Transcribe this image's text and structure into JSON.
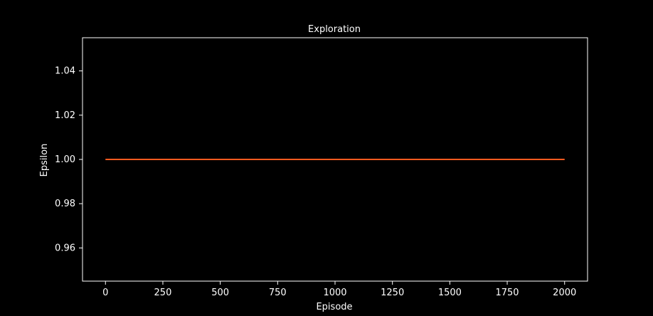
{
  "chart_data": {
    "type": "line",
    "title": "Exploration",
    "xlabel": "Episode",
    "ylabel": "Epsilon",
    "xlim": [
      -100,
      2100
    ],
    "ylim": [
      0.945,
      1.055
    ],
    "x_ticks": [
      0,
      250,
      500,
      750,
      1000,
      1250,
      1500,
      1750,
      2000
    ],
    "y_ticks": [
      0.96,
      0.98,
      1.0,
      1.02,
      1.04
    ],
    "y_tick_labels": [
      "0.96",
      "0.98",
      "1.00",
      "1.02",
      "1.04"
    ],
    "grid": false,
    "background": "#000000",
    "axis_color": "#ffffff",
    "series": [
      {
        "color": "#ff5a1f",
        "x": [
          0,
          2000
        ],
        "y": [
          1.0,
          1.0
        ]
      }
    ]
  }
}
